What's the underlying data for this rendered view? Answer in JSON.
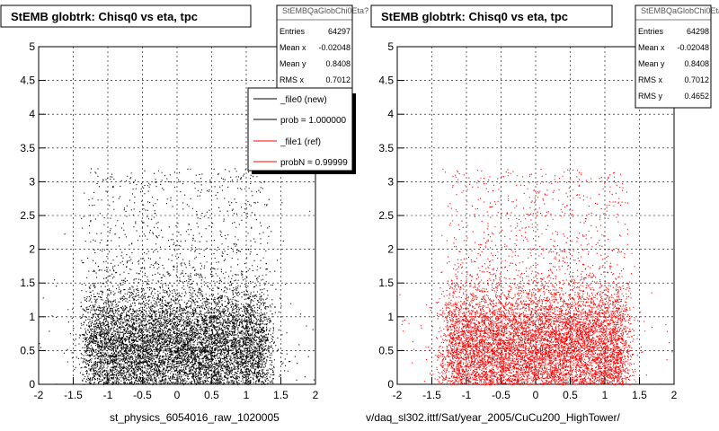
{
  "chart_data": [
    {
      "type": "scatter",
      "title": "StEMB globtrk: Chisq0 vs eta, tpc",
      "xlim": [
        -2,
        2
      ],
      "ylim": [
        0,
        5
      ],
      "xticks": [
        "-2",
        "-1.5",
        "-1",
        "-0.5",
        "0",
        "0.5",
        "1",
        "1.5",
        "2"
      ],
      "yticks": [
        "0",
        "0.5",
        "1",
        "1.5",
        "2",
        "2.5",
        "3",
        "3.5",
        "4",
        "4.5",
        "5"
      ],
      "grid": true,
      "marker_color": "#000000",
      "stats": {
        "name": "StEMBQaGlobChi0Eta?",
        "rows": [
          {
            "label": "Entries",
            "value": "64297"
          },
          {
            "label": "Mean x",
            "value": "-0.02048"
          },
          {
            "label": "Mean y",
            "value": "0.8408"
          },
          {
            "label": "RMS x",
            "value": "0.7012"
          }
        ]
      },
      "legend": {
        "entries": [
          {
            "label": "_file0 (new)",
            "color": "#000000"
          },
          {
            "label": "prob = 1.000000",
            "color": "#000000"
          },
          {
            "label": "_file1 (ref)",
            "color": "#ff0000"
          },
          {
            "label": "probN = 0.99999",
            "color": "#ff0000"
          }
        ]
      },
      "footer": "st_physics_6054016_raw_1020005"
    },
    {
      "type": "scatter",
      "title": "StEMB globtrk: Chisq0 vs eta, tpc",
      "xlim": [
        -2,
        2
      ],
      "ylim": [
        0,
        5
      ],
      "xticks": [
        "-2",
        "-1.5",
        "-1",
        "-0.5",
        "0",
        "0.5",
        "1",
        "1.5",
        "2"
      ],
      "yticks": [
        "0",
        "0.5",
        "1",
        "1.5",
        "2",
        "2.5",
        "3",
        "3.5",
        "4",
        "4.5",
        "5"
      ],
      "grid": true,
      "marker_color": "#ff0000",
      "stats": {
        "name": "StEMBQaGlobChi0Eta?",
        "rows": [
          {
            "label": "Entries",
            "value": "64298"
          },
          {
            "label": "Mean x",
            "value": "-0.02048"
          },
          {
            "label": "Mean y",
            "value": "0.8408"
          },
          {
            "label": "RMS x",
            "value": "0.7012"
          },
          {
            "label": "RMS y",
            "value": "0.4652"
          }
        ]
      },
      "footer": "v/daq_sl302.ittf/Sat/year_2005/CuCu200_HighTower/"
    }
  ]
}
